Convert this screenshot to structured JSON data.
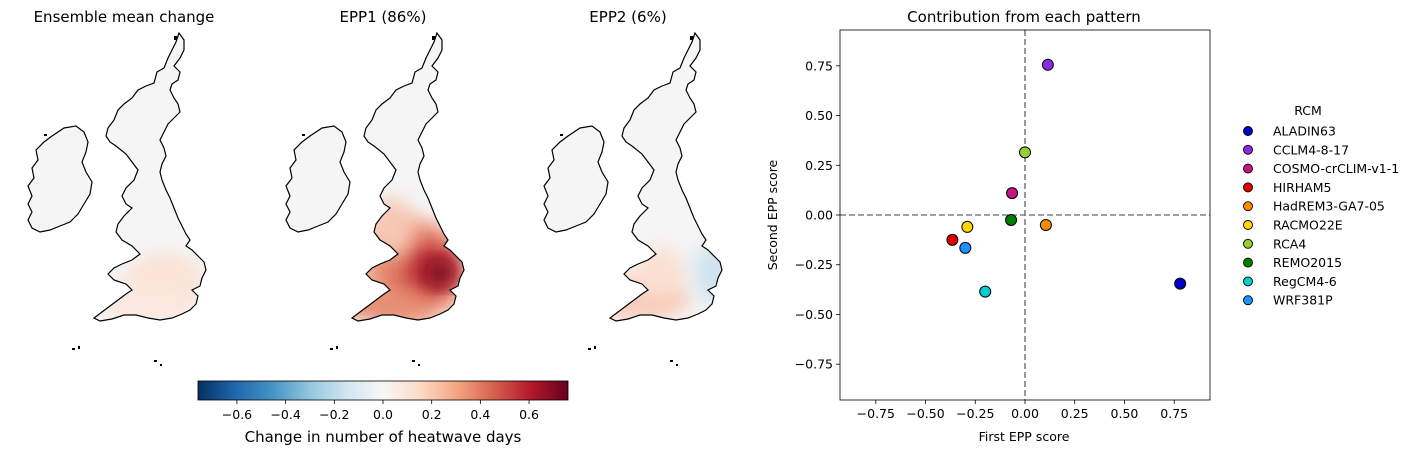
{
  "maps": [
    {
      "title": "Ensemble mean change",
      "pattern": "mean"
    },
    {
      "title": "EPP1 (86%)",
      "pattern": "epp1"
    },
    {
      "title": "EPP2 (6%)",
      "pattern": "epp2"
    }
  ],
  "colorbar": {
    "label": "Change in number of heatwave days",
    "colormap": "RdBu_r",
    "vmin": -0.76,
    "vmax": 0.76,
    "ticks": [
      "−0.6",
      "−0.4",
      "−0.2",
      "0.0",
      "0.2",
      "0.4",
      "0.6"
    ],
    "tick_values": [
      -0.6,
      -0.4,
      -0.2,
      0.0,
      0.2,
      0.4,
      0.6
    ]
  },
  "chart_data": {
    "type": "scatter",
    "title": "Contribution from each pattern",
    "xlabel": "First EPP score",
    "ylabel": "Second EPP score",
    "xlim": [
      -0.93,
      0.93
    ],
    "ylim": [
      -0.93,
      0.93
    ],
    "xticks": [
      -0.75,
      -0.5,
      -0.25,
      0.0,
      0.25,
      0.5,
      0.75
    ],
    "xtick_labels": [
      "−0.75",
      "−0.50",
      "−0.25",
      "0.00",
      "0.25",
      "0.50",
      "0.75"
    ],
    "yticks": [
      -0.75,
      -0.5,
      -0.25,
      0.0,
      0.25,
      0.5,
      0.75
    ],
    "ytick_labels": [
      "−0.75",
      "−0.50",
      "−0.25",
      "0.00",
      "0.25",
      "0.50",
      "0.75"
    ],
    "reference_lines": {
      "x": 0,
      "y": 0,
      "style": "dashed",
      "color": "#808080"
    },
    "legend": {
      "title": "RCM",
      "placement": "right outside"
    },
    "series": [
      {
        "name": "ALADIN63",
        "color": "#0000cd",
        "x": 0.78,
        "y": -0.345
      },
      {
        "name": "CCLM4-8-17",
        "color": "#8a2be2",
        "x": 0.115,
        "y": 0.755
      },
      {
        "name": "COSMO-crCLIM-v1-1",
        "color": "#c71585",
        "x": -0.065,
        "y": 0.11
      },
      {
        "name": "HIRHAM5",
        "color": "#e00000",
        "x": -0.365,
        "y": -0.125
      },
      {
        "name": "HadREM3-GA7-05",
        "color": "#ff8c00",
        "x": 0.105,
        "y": -0.05
      },
      {
        "name": "RACMO22E",
        "color": "#ffd700",
        "x": -0.29,
        "y": -0.06
      },
      {
        "name": "RCA4",
        "color": "#9acd32",
        "x": 0.0,
        "y": 0.315
      },
      {
        "name": "REMO2015",
        "color": "#008000",
        "x": -0.07,
        "y": -0.025
      },
      {
        "name": "RegCM4-6",
        "color": "#00ced1",
        "x": -0.2,
        "y": -0.385
      },
      {
        "name": "WRF381P",
        "color": "#1e90ff",
        "x": -0.3,
        "y": -0.165
      }
    ]
  }
}
